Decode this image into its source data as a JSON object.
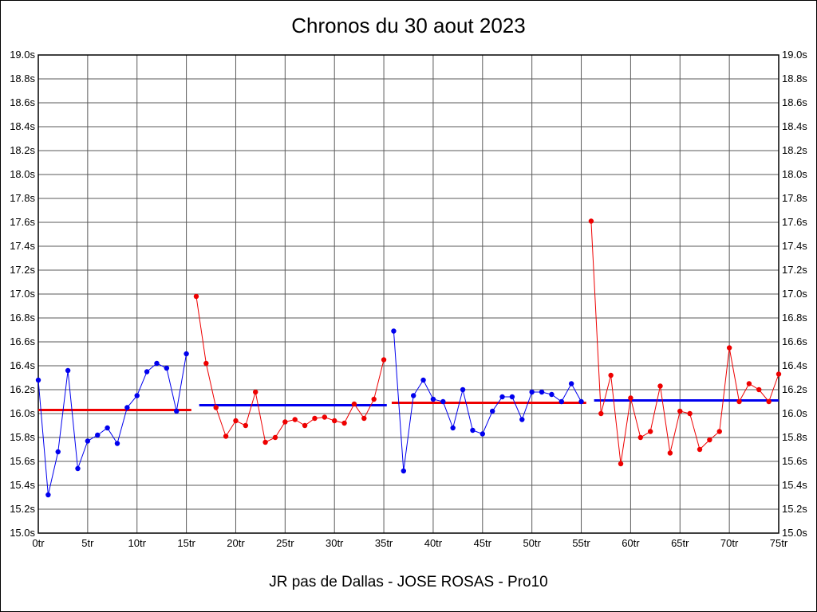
{
  "title": "Chronos du 30 aout 2023",
  "caption": "JR pas de Dallas - JOSE ROSAS - Pro10",
  "chart_data": {
    "type": "line",
    "title": "Chronos du 30 aout 2023",
    "caption": "JR pas de Dallas - JOSE ROSAS - Pro10",
    "x_unit": "tr",
    "y_unit": "s",
    "xlim": [
      0,
      75
    ],
    "ylim": [
      15.0,
      19.0
    ],
    "x_tick_step": 5,
    "y_tick_step": 0.2,
    "grid": true,
    "grid_color": "#5a5a5a",
    "axis_color": "#000000",
    "x_ticks": [
      "0tr",
      "5tr",
      "10tr",
      "15tr",
      "20tr",
      "25tr",
      "30tr",
      "35tr",
      "40tr",
      "45tr",
      "50tr",
      "55tr",
      "60tr",
      "65tr",
      "70tr",
      "75tr"
    ],
    "y_ticks_top_down": [
      "19.0s",
      "18.8s",
      "18.6s",
      "18.4s",
      "18.2s",
      "18.0s",
      "17.8s",
      "17.6s",
      "17.4s",
      "17.2s",
      "17.0s",
      "16.8s",
      "16.6s",
      "16.4s",
      "16.2s",
      "16.0s",
      "15.8s",
      "15.6s",
      "15.4s",
      "15.2s",
      "15.0s"
    ],
    "series": [
      {
        "name": "blue-stint-1",
        "color": "#0000ee",
        "points": [
          [
            0,
            16.28
          ],
          [
            1,
            15.32
          ],
          [
            2,
            15.68
          ],
          [
            3,
            16.36
          ],
          [
            4,
            15.54
          ],
          [
            5,
            15.77
          ],
          [
            6,
            15.82
          ],
          [
            7,
            15.88
          ],
          [
            8,
            15.75
          ],
          [
            9,
            16.05
          ],
          [
            10,
            16.15
          ],
          [
            11,
            16.35
          ],
          [
            12,
            16.42
          ],
          [
            13,
            16.38
          ],
          [
            14,
            16.02
          ],
          [
            15,
            16.5
          ]
        ]
      },
      {
        "name": "red-stint-1",
        "color": "#ee0000",
        "points": [
          [
            16,
            16.98
          ],
          [
            17,
            16.42
          ],
          [
            18,
            16.05
          ],
          [
            19,
            15.81
          ],
          [
            20,
            15.94
          ],
          [
            21,
            15.9
          ],
          [
            22,
            16.18
          ],
          [
            23,
            15.76
          ],
          [
            24,
            15.8
          ],
          [
            25,
            15.93
          ],
          [
            26,
            15.95
          ],
          [
            27,
            15.9
          ],
          [
            28,
            15.96
          ],
          [
            29,
            15.97
          ],
          [
            30,
            15.94
          ],
          [
            31,
            15.92
          ],
          [
            32,
            16.08
          ],
          [
            33,
            15.96
          ],
          [
            34,
            16.12
          ],
          [
            35,
            16.45
          ]
        ]
      },
      {
        "name": "blue-stint-2",
        "color": "#0000ee",
        "points": [
          [
            36,
            16.69
          ],
          [
            37,
            15.52
          ],
          [
            38,
            16.15
          ],
          [
            39,
            16.28
          ],
          [
            40,
            16.12
          ],
          [
            41,
            16.1
          ],
          [
            42,
            15.88
          ],
          [
            43,
            16.2
          ],
          [
            44,
            15.86
          ],
          [
            45,
            15.83
          ],
          [
            46,
            16.02
          ],
          [
            47,
            16.14
          ],
          [
            48,
            16.14
          ],
          [
            49,
            15.95
          ],
          [
            50,
            16.18
          ],
          [
            51,
            16.18
          ],
          [
            52,
            16.16
          ],
          [
            53,
            16.1
          ],
          [
            54,
            16.25
          ],
          [
            55,
            16.1
          ]
        ]
      },
      {
        "name": "red-stint-2",
        "color": "#ee0000",
        "points": [
          [
            56,
            17.61
          ],
          [
            57,
            16.0
          ],
          [
            58,
            16.32
          ],
          [
            59,
            15.58
          ],
          [
            60,
            16.13
          ],
          [
            61,
            15.8
          ],
          [
            62,
            15.85
          ],
          [
            63,
            16.23
          ],
          [
            64,
            15.67
          ],
          [
            65,
            16.02
          ],
          [
            66,
            16.0
          ],
          [
            67,
            15.7
          ],
          [
            68,
            15.78
          ],
          [
            69,
            15.85
          ],
          [
            70,
            16.55
          ],
          [
            71,
            16.1
          ],
          [
            72,
            16.25
          ],
          [
            73,
            16.2
          ],
          [
            74,
            16.1
          ],
          [
            75,
            16.33
          ]
        ]
      }
    ],
    "average_lines": [
      {
        "name": "avg-red-stint-1",
        "color": "#ee0000",
        "y": 16.03,
        "x1": 0,
        "x2": 15.5
      },
      {
        "name": "avg-blue-stint-1",
        "color": "#0000ee",
        "y": 16.07,
        "x1": 16.3,
        "x2": 35.3
      },
      {
        "name": "avg-red-stint-2",
        "color": "#ee0000",
        "y": 16.09,
        "x1": 35.8,
        "x2": 55.5
      },
      {
        "name": "avg-blue-stint-2",
        "color": "#0000ee",
        "y": 16.11,
        "x1": 56.3,
        "x2": 75
      }
    ]
  }
}
